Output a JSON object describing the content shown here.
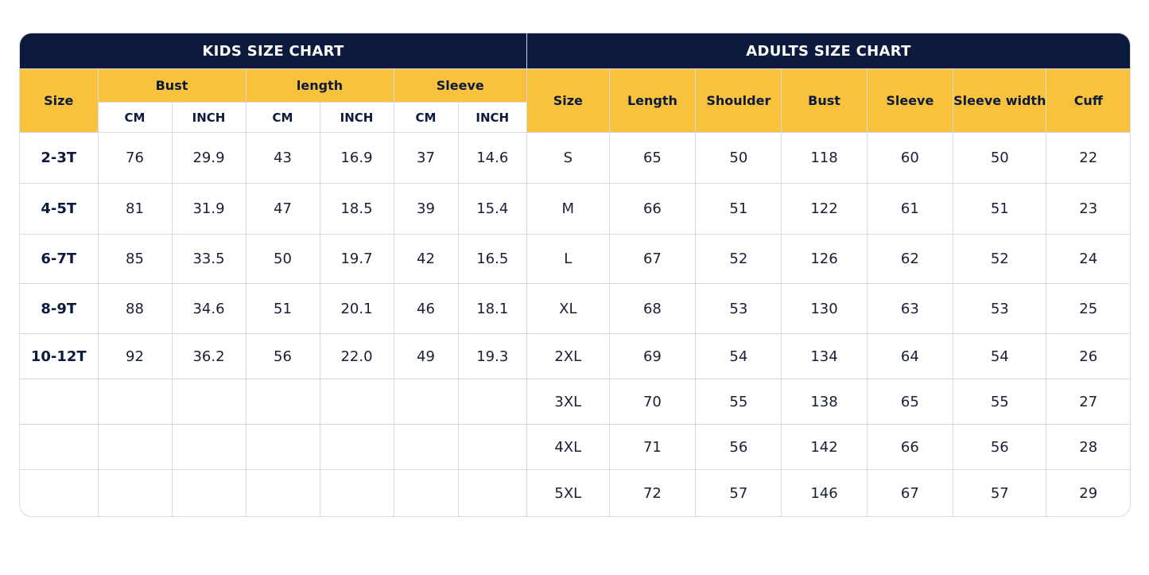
{
  "kids": {
    "title": "KIDS SIZE CHART",
    "headers": {
      "size": "Size",
      "bust": "Bust",
      "length": "length",
      "sleeve": "Sleeve",
      "cm": "CM",
      "inch": "INCH"
    },
    "rows": [
      [
        "2-3T",
        "76",
        "29.9",
        "43",
        "16.9",
        "37",
        "14.6"
      ],
      [
        "4-5T",
        "81",
        "31.9",
        "47",
        "18.5",
        "39",
        "15.4"
      ],
      [
        "6-7T",
        "85",
        "33.5",
        "50",
        "19.7",
        "42",
        "16.5"
      ],
      [
        "8-9T",
        "88",
        "34.6",
        "51",
        "20.1",
        "46",
        "18.1"
      ],
      [
        "10-12T",
        "92",
        "36.2",
        "56",
        "22.0",
        "49",
        "19.3"
      ]
    ]
  },
  "adults": {
    "title": "ADULTS SIZE CHART",
    "headers": [
      "Size",
      "Length",
      "Shoulder",
      "Bust",
      "Sleeve",
      "Sleeve width",
      "Cuff"
    ],
    "rows": [
      [
        "S",
        "65",
        "50",
        "118",
        "60",
        "50",
        "22"
      ],
      [
        "M",
        "66",
        "51",
        "122",
        "61",
        "51",
        "23"
      ],
      [
        "L",
        "67",
        "52",
        "126",
        "62",
        "52",
        "24"
      ],
      [
        "XL",
        "68",
        "53",
        "130",
        "63",
        "53",
        "25"
      ],
      [
        "2XL",
        "69",
        "54",
        "134",
        "64",
        "54",
        "26"
      ],
      [
        "3XL",
        "70",
        "55",
        "138",
        "65",
        "55",
        "27"
      ],
      [
        "4XL",
        "71",
        "56",
        "142",
        "66",
        "56",
        "28"
      ],
      [
        "5XL",
        "72",
        "57",
        "146",
        "67",
        "57",
        "29"
      ]
    ]
  },
  "colors": {
    "navy": "#0c1a3d",
    "yellow": "#f8c23c",
    "border": "#d6d9e0"
  }
}
